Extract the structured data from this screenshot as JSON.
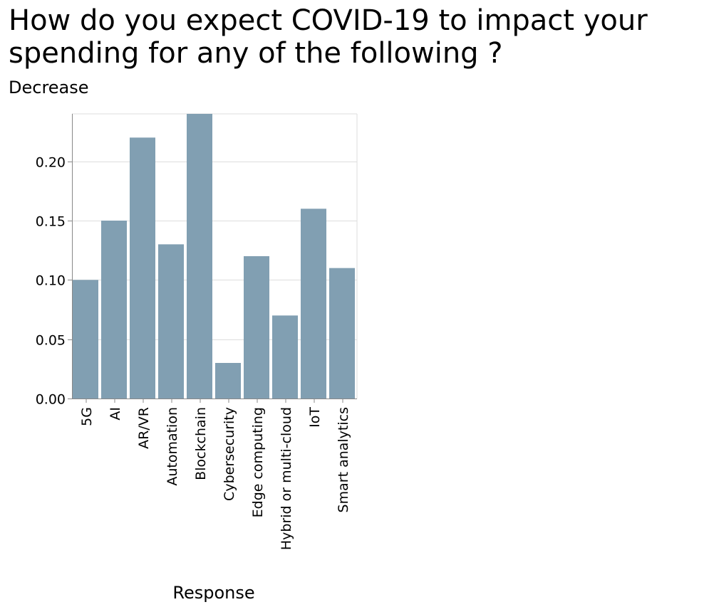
{
  "chart_data": {
    "type": "bar",
    "title": "How do you expect COVID-19 to impact your spending for any of the following ?",
    "subtitle": "Decrease",
    "xlabel": "Response",
    "ylabel": "",
    "categories": [
      "5G",
      "AI",
      "AR/VR",
      "Automation",
      "Blockchain",
      "Cybersecurity",
      "Edge computing",
      "Hybrid or multi-cloud",
      "IoT",
      "Smart analytics"
    ],
    "values": [
      0.1,
      0.15,
      0.22,
      0.13,
      0.24,
      0.03,
      0.12,
      0.07,
      0.16,
      0.11
    ],
    "ylim": [
      0,
      0.24
    ],
    "yticks": [
      "0.00",
      "0.05",
      "0.10",
      "0.15",
      "0.20"
    ],
    "grid": true,
    "colors": {
      "bar": "#819fb2",
      "grid": "#dddddd",
      "axis": "#888888"
    }
  }
}
